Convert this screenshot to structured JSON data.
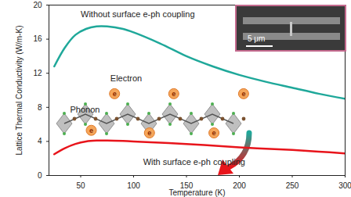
{
  "chart_data": {
    "type": "line",
    "x_label": "Temperature (K)",
    "y_label": "Lattice Thermal Conductivity (W/m-K)",
    "x": [
      25,
      35,
      45,
      55,
      65,
      75,
      90,
      100,
      125,
      150,
      175,
      200,
      225,
      250,
      275,
      300
    ],
    "series": [
      {
        "name": "Without surface e-ph coupling",
        "color": "#1fa89a",
        "values": [
          12.8,
          15.0,
          16.5,
          17.2,
          17.5,
          17.5,
          17.2,
          16.8,
          15.5,
          14.0,
          12.8,
          11.8,
          11.0,
          10.3,
          9.6,
          9.0
        ]
      },
      {
        "name": "With surface e-ph coupling",
        "color": "#e8141b",
        "values": [
          2.5,
          3.2,
          3.7,
          4.0,
          4.1,
          4.1,
          4.05,
          4.0,
          3.85,
          3.7,
          3.5,
          3.3,
          3.15,
          3.0,
          2.8,
          2.6
        ]
      }
    ],
    "xlim": [
      20,
      300
    ],
    "xticks": [
      50,
      100,
      150,
      200,
      250,
      300
    ],
    "ylim": [
      0,
      20
    ],
    "yticks": [
      0,
      4,
      8,
      12,
      16,
      20
    ],
    "grid": false,
    "annotations": [
      {
        "text": "Without surface e-ph coupling",
        "x": 50,
        "y": 18.9,
        "color": "#222222"
      },
      {
        "text": "With surface e-ph coupling",
        "x": 109,
        "y": 1.6,
        "color": "#222222"
      },
      {
        "text": "Electron",
        "x": 78,
        "y": 11.4,
        "color": "#222222"
      },
      {
        "text": "Phonon",
        "x": 40,
        "y": 7.7,
        "color": "#222222"
      },
      {
        "text": "e",
        "x": 82,
        "y": 9.6,
        "color": "#8a2a00",
        "marker": "circle"
      },
      {
        "text": "e",
        "x": 138,
        "y": 9.6,
        "color": "#8a2a00",
        "marker": "circle"
      },
      {
        "text": "e",
        "x": 204,
        "y": 9.6,
        "color": "#8a2a00",
        "marker": "circle"
      },
      {
        "text": "e",
        "x": 60,
        "y": 5.3,
        "color": "#8a2a00",
        "marker": "circle"
      },
      {
        "text": "e",
        "x": 115,
        "y": 5.0,
        "color": "#8a2a00",
        "marker": "circle"
      },
      {
        "text": "e",
        "x": 176,
        "y": 5.0,
        "color": "#8a2a00",
        "marker": "circle"
      }
    ],
    "inset_scale_bar": "5 μm"
  }
}
